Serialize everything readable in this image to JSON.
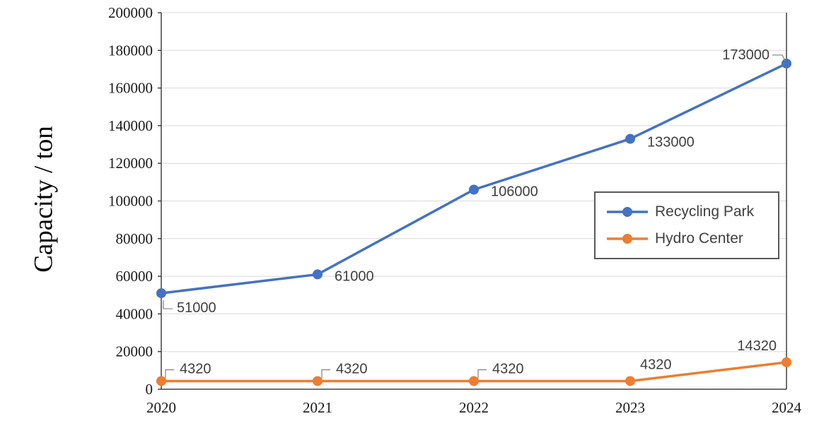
{
  "chart_data": {
    "type": "line",
    "title": "",
    "xlabel": "",
    "ylabel": "Capacity / ton",
    "categories": [
      "2020",
      "2021",
      "2022",
      "2023",
      "2024"
    ],
    "series": [
      {
        "name": "Recycling Park",
        "color": "#4472C4",
        "values": [
          51000,
          61000,
          106000,
          133000,
          173000
        ],
        "point_labels": [
          "51000",
          "61000",
          "106000",
          "133000",
          "173000"
        ]
      },
      {
        "name": "Hydro Center",
        "color": "#ED7D31",
        "values": [
          4320,
          4320,
          4320,
          4320,
          14320
        ],
        "point_labels": [
          "4320",
          "4320",
          "4320",
          "4320",
          "14320"
        ]
      }
    ],
    "ylim": [
      0,
      200000
    ],
    "ytick_step": 20000,
    "grid": true,
    "legend_position": "middle-right",
    "colors": {
      "gridline": "#D9D9D9",
      "axis": "#404040",
      "tick_text": "#1a1a1a",
      "data_label": "#404040",
      "leader": "#7F7F7F"
    }
  }
}
